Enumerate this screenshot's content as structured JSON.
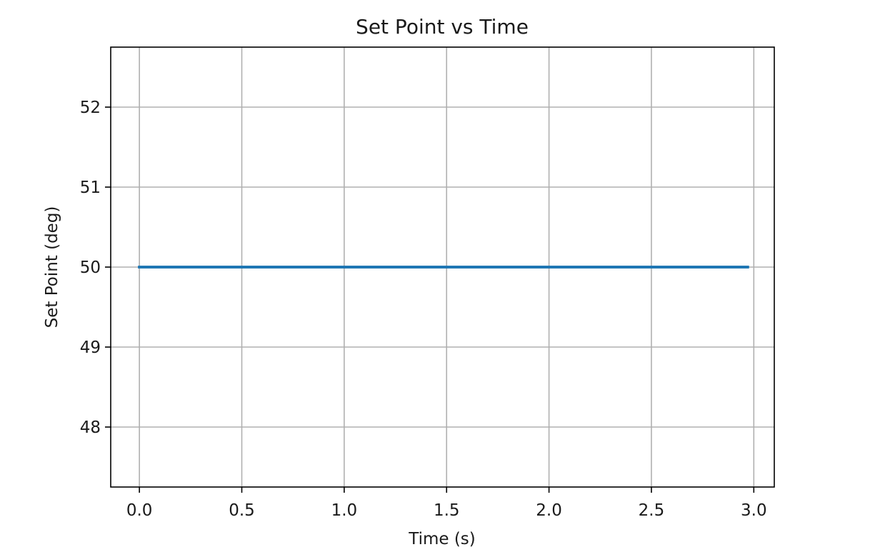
{
  "chart_data": {
    "type": "line",
    "title": "Set Point vs Time",
    "xlabel": "Time (s)",
    "ylabel": "Set Point (deg)",
    "xlim": [
      -0.14,
      3.1
    ],
    "ylim": [
      47.25,
      52.75
    ],
    "xticks": [
      0.0,
      0.5,
      1.0,
      1.5,
      2.0,
      2.5,
      3.0
    ],
    "xtick_labels": [
      "0.0",
      "0.5",
      "1.0",
      "1.5",
      "2.0",
      "2.5",
      "3.0"
    ],
    "yticks": [
      48,
      49,
      50,
      51,
      52
    ],
    "ytick_labels": [
      "48",
      "49",
      "50",
      "51",
      "52"
    ],
    "grid": true,
    "series": [
      {
        "color": "#1f77b4",
        "x": [
          0.0,
          0.5,
          1.0,
          1.5,
          2.0,
          2.5,
          2.97
        ],
        "y": [
          50,
          50,
          50,
          50,
          50,
          50,
          50
        ]
      }
    ]
  }
}
